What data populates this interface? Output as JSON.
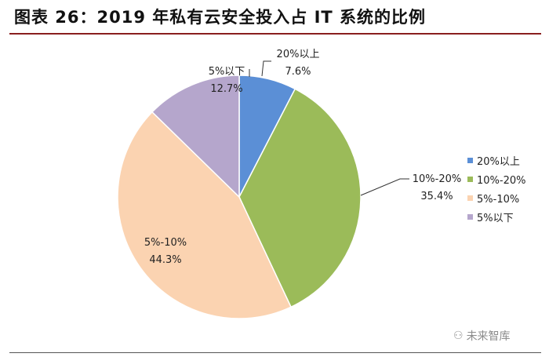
{
  "figure": {
    "title": "图表 26：2019 年私有云安全投入占 IT 系统的比例"
  },
  "watermark": {
    "text": "未来智库",
    "icon": "wechat-icon"
  },
  "chart_data": {
    "type": "pie",
    "title": "",
    "legend_position": "right",
    "start_angle_deg": 0,
    "direction": "clockwise",
    "slices": [
      {
        "label": "20%以上",
        "value": 7.6,
        "value_label": "7.6%",
        "color": "#5b8fd6"
      },
      {
        "label": "10%-20%",
        "value": 35.4,
        "value_label": "35.4%",
        "color": "#9bbb59"
      },
      {
        "label": "5%-10%",
        "value": 44.3,
        "value_label": "44.3%",
        "color": "#fbd3b1"
      },
      {
        "label": "5%以下",
        "value": 12.7,
        "value_label": "12.7%",
        "color": "#b5a6cc"
      }
    ]
  }
}
